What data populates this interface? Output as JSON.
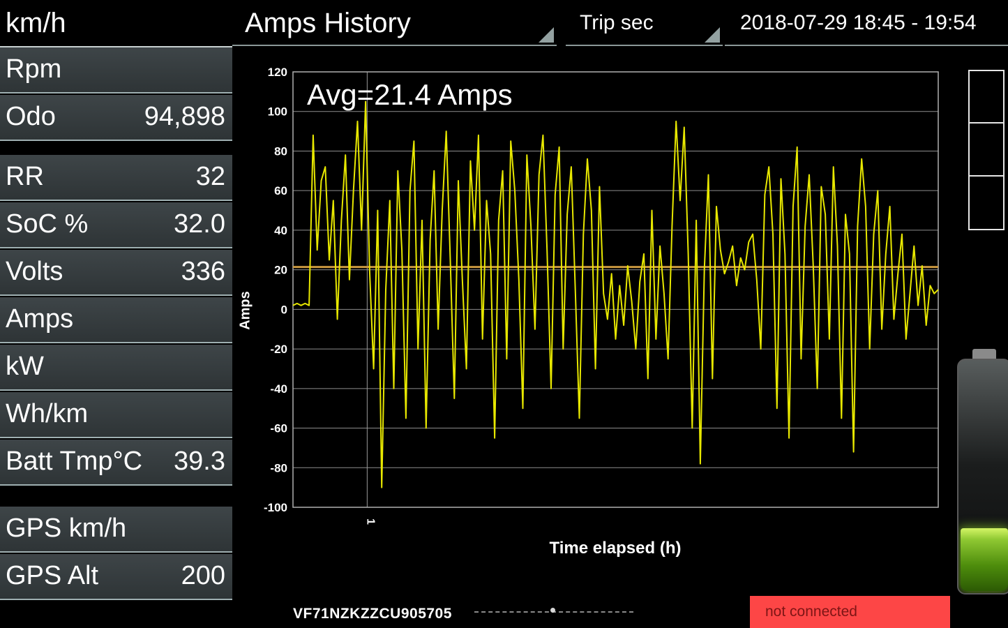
{
  "header": {
    "title": "Amps History",
    "trip_selector": "Trip sec",
    "date_range": "2018-07-29 18:45 - 19:54"
  },
  "sidebar": {
    "speed_unit_label": "km/h",
    "rows": [
      {
        "label": "Rpm",
        "value": ""
      },
      {
        "label": "Odo",
        "value": "94,898"
      },
      {
        "label": "RR",
        "value": "32"
      },
      {
        "label": "SoC %",
        "value": "32.0"
      },
      {
        "label": "Volts",
        "value": "336"
      },
      {
        "label": "Amps",
        "value": ""
      },
      {
        "label": "kW",
        "value": ""
      },
      {
        "label": "Wh/km",
        "value": ""
      },
      {
        "label": "Batt Tmp°C",
        "value": "39.3"
      },
      {
        "label": "GPS km/h",
        "value": ""
      },
      {
        "label": "GPS Alt",
        "value": "200"
      }
    ]
  },
  "footer": {
    "vin": "VF71NZKZZCU905705",
    "status": "not connected"
  },
  "colors": {
    "series": "#e8e800",
    "avg_line": "#c9973f",
    "status_bg": "#fd4646",
    "row_bg": "#353b3e",
    "grid": "#8d8d8d"
  },
  "chart_data": {
    "type": "line",
    "title": "Amps History",
    "annotation": "Avg=21.4 Amps",
    "avg_value": 21.4,
    "xlabel": "Time elapsed (h)",
    "ylabel": "Amps",
    "ylim": [
      -100,
      120
    ],
    "y_ticks": [
      120,
      100,
      80,
      60,
      40,
      20,
      0,
      -20,
      -40,
      -60,
      -80,
      -100
    ],
    "x_tick": {
      "label": "1",
      "fraction": 0.115
    },
    "grid": true,
    "legend": false,
    "series_color": "#e8e800",
    "avg_line_color": "#c9973f",
    "values": [
      2,
      3,
      2,
      3,
      2,
      88,
      30,
      65,
      72,
      25,
      55,
      -5,
      45,
      78,
      15,
      60,
      95,
      40,
      105,
      20,
      -30,
      50,
      -90,
      10,
      55,
      -40,
      70,
      30,
      -55,
      60,
      85,
      -20,
      45,
      -60,
      35,
      70,
      -10,
      50,
      90,
      25,
      -45,
      65,
      15,
      -30,
      75,
      40,
      88,
      -15,
      55,
      28,
      -65,
      45,
      70,
      -25,
      85,
      60,
      15,
      -50,
      78,
      42,
      -10,
      68,
      88,
      30,
      -40,
      58,
      82,
      -20,
      48,
      72,
      10,
      -55,
      38,
      76,
      50,
      -30,
      62,
      8,
      -5,
      18,
      -15,
      12,
      -8,
      22,
      4,
      -20,
      14,
      28,
      -35,
      50,
      -15,
      32,
      8,
      -25,
      42,
      95,
      55,
      92,
      28,
      -60,
      45,
      -78,
      20,
      68,
      -35,
      52,
      30,
      18,
      24,
      32,
      12,
      26,
      20,
      34,
      38,
      15,
      -20,
      58,
      72,
      38,
      -50,
      66,
      28,
      -65,
      52,
      82,
      -25,
      42,
      68,
      22,
      -40,
      62,
      48,
      -15,
      72,
      32,
      -55,
      48,
      28,
      -72,
      42,
      76,
      52,
      -20,
      38,
      60,
      -10,
      28,
      52,
      -5,
      18,
      38,
      -15,
      8,
      32,
      2,
      22,
      -8,
      12,
      8,
      10
    ]
  }
}
